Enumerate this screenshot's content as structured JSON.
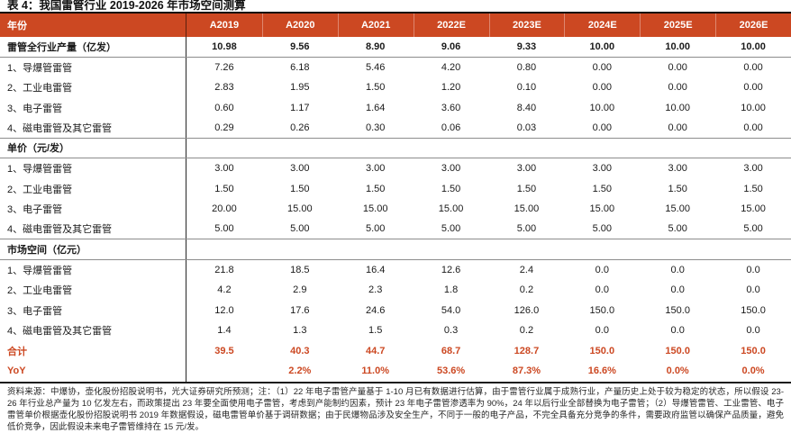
{
  "title": "表 4：我国雷管行业 2019-2026 年市场空间测算",
  "colors": {
    "header_bg": "#cc4822",
    "accent_text": "#cc4822"
  },
  "table": {
    "year_col_label": "年份",
    "columns": [
      "A2019",
      "A2020",
      "A2021",
      "2022E",
      "2023E",
      "2024E",
      "2025E",
      "2026E"
    ],
    "rows": [
      {
        "label": "雷管全行业产量（亿发）",
        "type": "section",
        "rule": true,
        "values": [
          "10.98",
          "9.56",
          "8.90",
          "9.06",
          "9.33",
          "10.00",
          "10.00",
          "10.00"
        ]
      },
      {
        "label": "1、导爆管雷管",
        "type": "item",
        "rule": false,
        "values": [
          "7.26",
          "6.18",
          "5.46",
          "4.20",
          "0.80",
          "0.00",
          "0.00",
          "0.00"
        ]
      },
      {
        "label": "2、工业电雷管",
        "type": "item",
        "rule": false,
        "values": [
          "2.83",
          "1.95",
          "1.50",
          "1.20",
          "0.10",
          "0.00",
          "0.00",
          "0.00"
        ]
      },
      {
        "label": "3、电子雷管",
        "type": "item",
        "rule": false,
        "values": [
          "0.60",
          "1.17",
          "1.64",
          "3.60",
          "8.40",
          "10.00",
          "10.00",
          "10.00"
        ]
      },
      {
        "label": "4、磁电雷管及其它雷管",
        "type": "item",
        "rule": true,
        "values": [
          "0.29",
          "0.26",
          "0.30",
          "0.06",
          "0.03",
          "0.00",
          "0.00",
          "0.00"
        ]
      },
      {
        "label": "单价（元/发）",
        "type": "section",
        "rule": true,
        "values": [
          "",
          "",
          "",
          "",
          "",
          "",
          "",
          ""
        ]
      },
      {
        "label": "1、导爆管雷管",
        "type": "item",
        "rule": false,
        "values": [
          "3.00",
          "3.00",
          "3.00",
          "3.00",
          "3.00",
          "3.00",
          "3.00",
          "3.00"
        ]
      },
      {
        "label": "2、工业电雷管",
        "type": "item",
        "rule": false,
        "values": [
          "1.50",
          "1.50",
          "1.50",
          "1.50",
          "1.50",
          "1.50",
          "1.50",
          "1.50"
        ]
      },
      {
        "label": "3、电子雷管",
        "type": "item",
        "rule": false,
        "values": [
          "20.00",
          "15.00",
          "15.00",
          "15.00",
          "15.00",
          "15.00",
          "15.00",
          "15.00"
        ]
      },
      {
        "label": "4、磁电雷管及其它雷管",
        "type": "item",
        "rule": true,
        "values": [
          "5.00",
          "5.00",
          "5.00",
          "5.00",
          "5.00",
          "5.00",
          "5.00",
          "5.00"
        ]
      },
      {
        "label": "市场空间（亿元）",
        "type": "section",
        "rule": true,
        "values": [
          "",
          "",
          "",
          "",
          "",
          "",
          "",
          ""
        ]
      },
      {
        "label": "1、导爆管雷管",
        "type": "item",
        "rule": false,
        "values": [
          "21.8",
          "18.5",
          "16.4",
          "12.6",
          "2.4",
          "0.0",
          "0.0",
          "0.0"
        ]
      },
      {
        "label": "2、工业电雷管",
        "type": "item",
        "rule": false,
        "values": [
          "4.2",
          "2.9",
          "2.3",
          "1.8",
          "0.2",
          "0.0",
          "0.0",
          "0.0"
        ]
      },
      {
        "label": "3、电子雷管",
        "type": "item",
        "rule": false,
        "values": [
          "12.0",
          "17.6",
          "24.6",
          "54.0",
          "126.0",
          "150.0",
          "150.0",
          "150.0"
        ]
      },
      {
        "label": "4、磁电雷管及其它雷管",
        "type": "item",
        "rule": false,
        "values": [
          "1.4",
          "1.3",
          "1.5",
          "0.3",
          "0.2",
          "0.0",
          "0.0",
          "0.0"
        ]
      },
      {
        "label": "合计",
        "type": "total",
        "rule": false,
        "values": [
          "39.5",
          "40.3",
          "44.7",
          "68.7",
          "128.7",
          "150.0",
          "150.0",
          "150.0"
        ]
      },
      {
        "label": "YoY",
        "type": "total",
        "rule": false,
        "values": [
          "",
          "2.2%",
          "11.0%",
          "53.6%",
          "87.3%",
          "16.6%",
          "0.0%",
          "0.0%"
        ]
      }
    ]
  },
  "footnote": "资料来源：中爆协，壶化股份招股说明书，光大证券研究所预测；注：（1）22 年电子雷管产量基于 1-10 月已有数据进行估算，由于雷管行业属于成熟行业，产量历史上处于较为稳定的状态，所以假设 23-26 年行业总产量为 10 亿发左右，而政策提出 23 年要全面使用电子雷管，考虑到产能制约因素，预计 23 年电子雷管渗透率为 90%，24 年以后行业全部替换为电子雷管；（2）导爆管雷管、工业雷管、电子雷管单价根据壶化股份招股说明书 2019 年数据假设，磁电雷管单价基于调研数据；由于民爆物品涉及安全生产，不同于一般的电子产品，不完全具备充分竞争的条件，需要政府监管以确保产品质量，避免低价竞争，因此假设未来电子雷管维持在 15 元/发。"
}
